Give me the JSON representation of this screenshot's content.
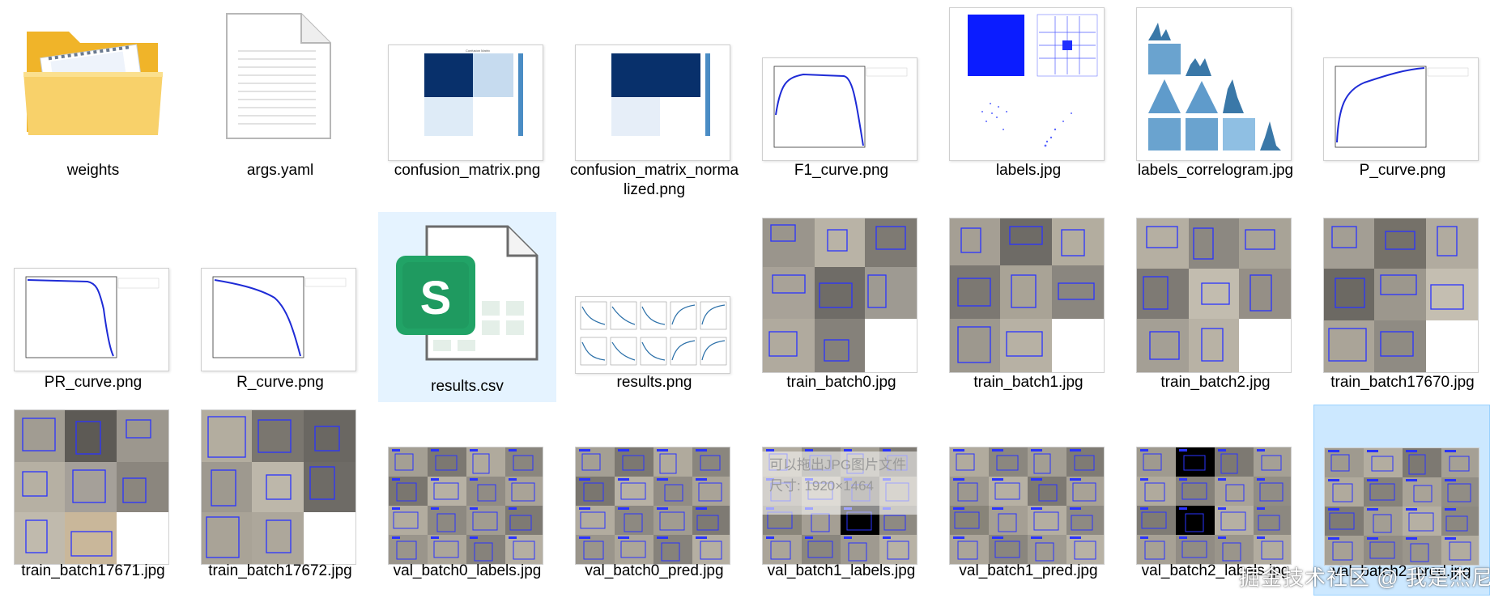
{
  "files": [
    {
      "name": "weights",
      "icon": "folder-icon"
    },
    {
      "name": "args.yaml",
      "icon": "document-icon"
    },
    {
      "name": "confusion_matrix.png",
      "icon": "confusion-matrix-thumbnail"
    },
    {
      "name": "confusion_matrix_normalized.png",
      "icon": "confusion-matrix-thumbnail"
    },
    {
      "name": "F1_curve.png",
      "icon": "curve-thumbnail"
    },
    {
      "name": "labels.jpg",
      "icon": "labels-thumbnail"
    },
    {
      "name": "labels_correlogram.jpg",
      "icon": "correlogram-thumbnail"
    },
    {
      "name": "P_curve.png",
      "icon": "curve-thumbnail"
    },
    {
      "name": "PR_curve.png",
      "icon": "curve-thumbnail"
    },
    {
      "name": "R_curve.png",
      "icon": "curve-thumbnail"
    },
    {
      "name": "results.csv",
      "icon": "spreadsheet-icon"
    },
    {
      "name": "results.png",
      "icon": "results-grid-thumbnail"
    },
    {
      "name": "train_batch0.jpg",
      "icon": "photo-mosaic-thumbnail"
    },
    {
      "name": "train_batch1.jpg",
      "icon": "photo-mosaic-thumbnail"
    },
    {
      "name": "train_batch2.jpg",
      "icon": "photo-mosaic-thumbnail"
    },
    {
      "name": "train_batch17670.jpg",
      "icon": "photo-mosaic-thumbnail"
    },
    {
      "name": "train_batch17671.jpg",
      "icon": "photo-mosaic-thumbnail"
    },
    {
      "name": "train_batch17672.jpg",
      "icon": "photo-mosaic-thumbnail"
    },
    {
      "name": "val_batch0_labels.jpg",
      "icon": "photo-mosaic-thumbnail"
    },
    {
      "name": "val_batch0_pred.jpg",
      "icon": "photo-mosaic-thumbnail"
    },
    {
      "name": "val_batch1_labels.jpg",
      "icon": "photo-mosaic-thumbnail"
    },
    {
      "name": "val_batch1_pred.jpg",
      "icon": "photo-mosaic-thumbnail"
    },
    {
      "name": "val_batch2_labels.jpg",
      "icon": "photo-mosaic-thumbnail"
    },
    {
      "name": "val_batch2_pred.jpg",
      "icon": "photo-mosaic-thumbnail"
    }
  ],
  "watermark": "掘金技术社区 @ 我是杰尼",
  "overlay_text": [
    "可以拖出JPG图片文件",
    "尺寸: 1920×1464"
  ],
  "colors": {
    "selection": "#cce8ff",
    "folder_yellow": "#f6c445",
    "spreadsheet_green": "#21a366",
    "box_blue": "#2a33ff",
    "plot_blue": "#1e2bd6",
    "cm_dark": "#08306b"
  }
}
